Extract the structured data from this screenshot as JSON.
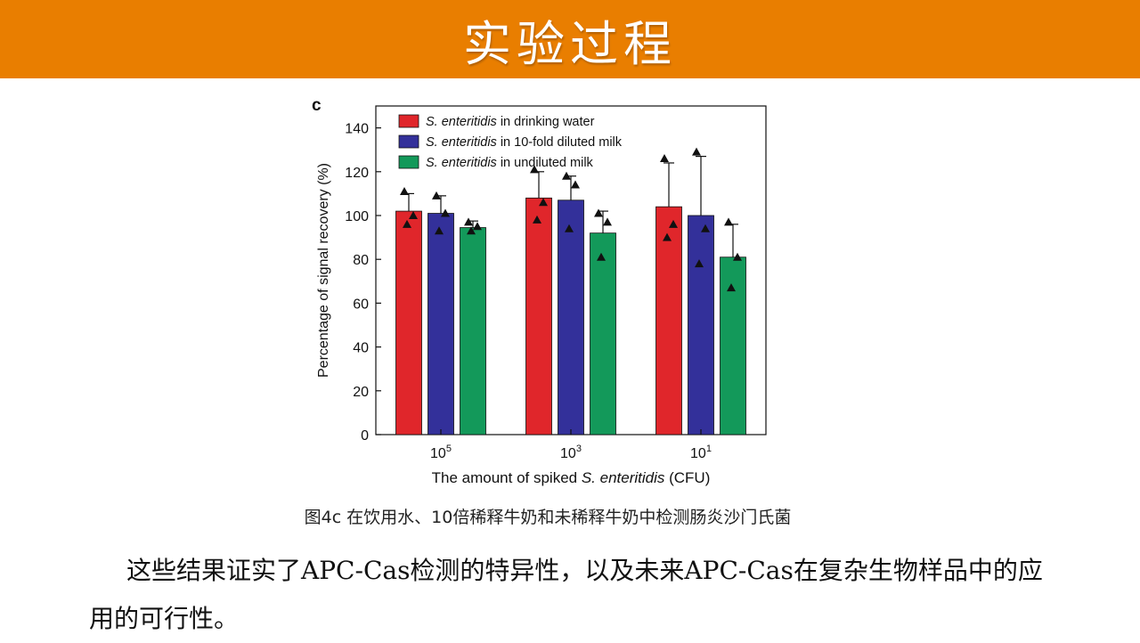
{
  "header": {
    "title": "实验过程",
    "color": "#e97e00"
  },
  "figure": {
    "panel_label": "c"
  },
  "chart_data": {
    "type": "bar",
    "categories": [
      "10^5",
      "10^3",
      "10^1"
    ],
    "category_labels": [
      {
        "base": "10",
        "exp": "5"
      },
      {
        "base": "10",
        "exp": "3"
      },
      {
        "base": "10",
        "exp": "1"
      }
    ],
    "xlabel": {
      "prefix": "The amount of spiked ",
      "italic": "S. enteritidis",
      "suffix": " (CFU)"
    },
    "ylabel": "Percentage of signal recovery (%)",
    "ylim": [
      0,
      150
    ],
    "yticks": [
      0,
      20,
      40,
      60,
      80,
      100,
      120,
      140
    ],
    "legend_position": "top-left",
    "grid": false,
    "series": [
      {
        "name": "S. enteritidis in drinking water",
        "name_italic": "S. enteritidis",
        "name_rest": " in drinking water",
        "color": "#e0262b",
        "values": [
          102,
          108,
          104
        ],
        "error": [
          8,
          12,
          20
        ],
        "points": [
          [
            111,
            100,
            96
          ],
          [
            121,
            106,
            98
          ],
          [
            126,
            96,
            90
          ]
        ]
      },
      {
        "name": "S. enteritidis in 10-fold diluted milk",
        "name_italic": "S. enteritidis",
        "name_rest": " in 10-fold diluted milk",
        "color": "#33309a",
        "values": [
          101,
          107,
          100
        ],
        "error": [
          8,
          11,
          27
        ],
        "points": [
          [
            109,
            101,
            93
          ],
          [
            118,
            114,
            94
          ],
          [
            129,
            94,
            78
          ]
        ]
      },
      {
        "name": "S. enteritidis in undiluted milk",
        "name_italic": "S. enteritidis",
        "name_rest": " in undiluted milk",
        "color": "#13995a",
        "values": [
          94.5,
          92,
          81
        ],
        "error": [
          3,
          10,
          15
        ],
        "points": [
          [
            97,
            95,
            93
          ],
          [
            101,
            97,
            81
          ],
          [
            97,
            81,
            67
          ]
        ]
      }
    ]
  },
  "caption": {
    "text": "图4c 在饮用水、10倍稀释牛奶和未稀释牛奶中检测肠炎沙门氏菌"
  },
  "body": {
    "paragraph": "这些结果证实了APC-Cas检测的特异性，以及未来APC-Cas在复杂生物样品中的应用的可行性。"
  }
}
